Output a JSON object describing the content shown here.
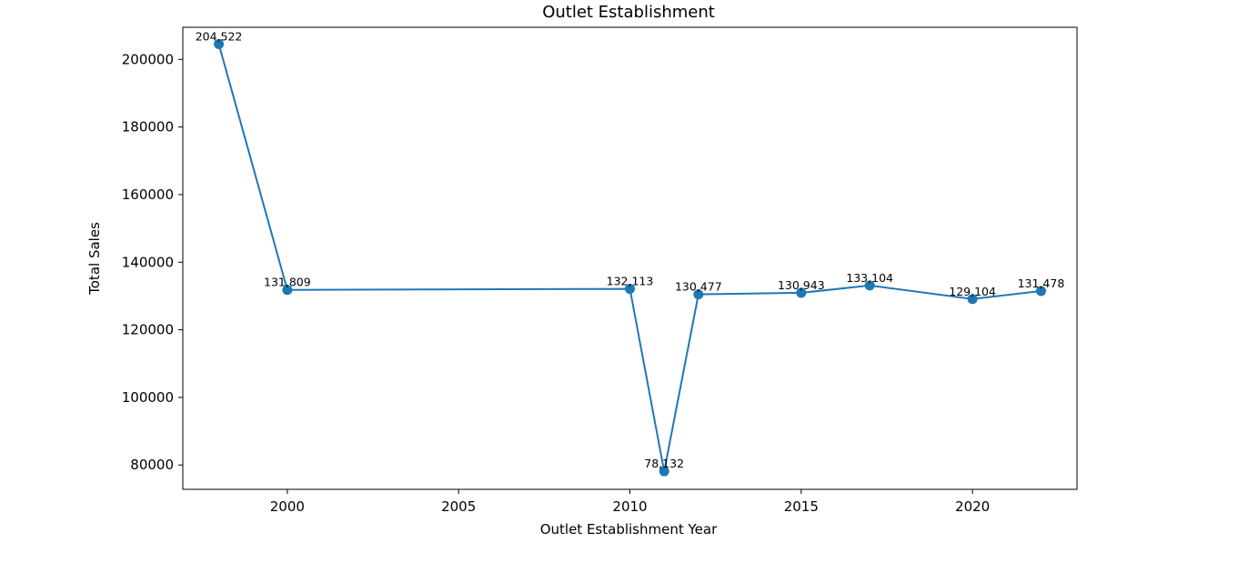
{
  "chart_data": {
    "type": "line",
    "title": "Outlet Establishment",
    "xlabel": "Outlet Establishment Year",
    "ylabel": "Total Sales",
    "xlim": [
      1996.95,
      2023.05
    ],
    "ylim": [
      72800,
      209500
    ],
    "xticks": [
      2000,
      2005,
      2010,
      2015,
      2020
    ],
    "yticks": [
      80000,
      100000,
      120000,
      140000,
      160000,
      180000,
      200000
    ],
    "grid": false,
    "color": "#1f77b4",
    "x": [
      1998,
      2000,
      2010,
      2011,
      2012,
      2015,
      2017,
      2020,
      2022
    ],
    "y": [
      204522,
      131809,
      132113,
      78132,
      130477,
      130943,
      133104,
      129104,
      131478
    ],
    "point_labels": [
      "204,522",
      "131,809",
      "132,113",
      "78,132",
      "130,477",
      "130,943",
      "133,104",
      "129,104",
      "131,478"
    ]
  }
}
